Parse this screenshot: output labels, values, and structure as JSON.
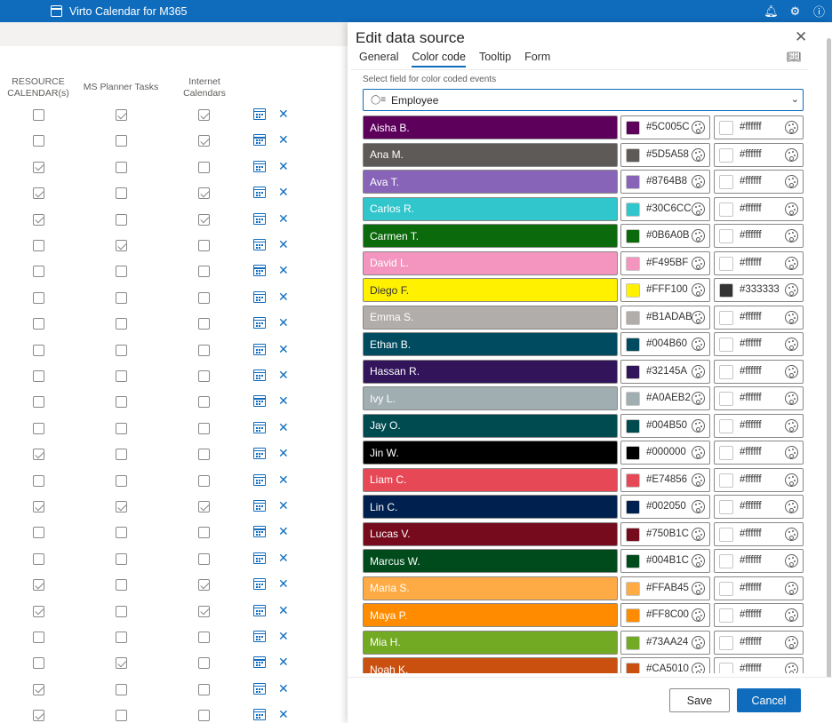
{
  "app": {
    "title": "Virto Calendar for M365",
    "icons": [
      "bell-icon",
      "gear-icon",
      "help-icon"
    ]
  },
  "table": {
    "headers": [
      {
        "line1": "RESOURCE",
        "line2": "CALENDAR(s)"
      },
      {
        "line1": "MS Planner Tasks",
        "line2": ""
      },
      {
        "line1": "Internet",
        "line2": "Calendars"
      }
    ],
    "rows": [
      [
        false,
        true,
        true
      ],
      [
        false,
        false,
        true
      ],
      [
        true,
        false,
        false
      ],
      [
        true,
        false,
        true
      ],
      [
        true,
        false,
        true
      ],
      [
        false,
        true,
        false
      ],
      [
        false,
        false,
        false
      ],
      [
        false,
        false,
        false
      ],
      [
        false,
        false,
        false
      ],
      [
        false,
        false,
        false
      ],
      [
        false,
        false,
        false
      ],
      [
        false,
        false,
        false
      ],
      [
        false,
        false,
        false
      ],
      [
        true,
        false,
        false
      ],
      [
        false,
        false,
        false
      ],
      [
        true,
        true,
        true
      ],
      [
        false,
        false,
        false
      ],
      [
        false,
        false,
        false
      ],
      [
        true,
        false,
        true
      ],
      [
        true,
        false,
        true
      ],
      [
        false,
        false,
        false
      ],
      [
        false,
        true,
        false
      ],
      [
        true,
        false,
        false
      ],
      [
        true,
        false,
        false
      ],
      [
        true,
        false,
        false
      ]
    ]
  },
  "panel": {
    "title": "Edit data source",
    "tabs": [
      "General",
      "Color code",
      "Tooltip",
      "Form"
    ],
    "active_tab": "Color code",
    "field_label": "Select field for color coded events",
    "field_value": "Employee",
    "save_label": "Save",
    "cancel_label": "Cancel"
  },
  "color_codes": [
    {
      "name": "Aisha B.",
      "bg": "#5C005C",
      "fg": "#ffffff"
    },
    {
      "name": "Ana M.",
      "bg": "#5D5A58",
      "fg": "#ffffff"
    },
    {
      "name": "Ava T.",
      "bg": "#8764B8",
      "fg": "#ffffff"
    },
    {
      "name": "Carlos R.",
      "bg": "#30C6CC",
      "fg": "#ffffff"
    },
    {
      "name": "Carmen T.",
      "bg": "#0B6A0B",
      "fg": "#ffffff"
    },
    {
      "name": "David L.",
      "bg": "#F495BF",
      "fg": "#ffffff"
    },
    {
      "name": "Diego F.",
      "bg": "#FFF100",
      "fg": "#333333"
    },
    {
      "name": "Emma S.",
      "bg": "#B1ADAB",
      "fg": "#ffffff"
    },
    {
      "name": "Ethan B.",
      "bg": "#004B60",
      "fg": "#ffffff"
    },
    {
      "name": "Hassan R.",
      "bg": "#32145A",
      "fg": "#ffffff"
    },
    {
      "name": "Ivy L.",
      "bg": "#A0AEB2",
      "fg": "#ffffff"
    },
    {
      "name": "Jay O.",
      "bg": "#004B50",
      "fg": "#ffffff"
    },
    {
      "name": "Jin W.",
      "bg": "#000000",
      "fg": "#ffffff"
    },
    {
      "name": "Liam C.",
      "bg": "#E74856",
      "fg": "#ffffff"
    },
    {
      "name": "Lin C.",
      "bg": "#002050",
      "fg": "#ffffff"
    },
    {
      "name": "Lucas V.",
      "bg": "#750B1C",
      "fg": "#ffffff"
    },
    {
      "name": "Marcus W.",
      "bg": "#004B1C",
      "fg": "#ffffff"
    },
    {
      "name": "Maria S.",
      "bg": "#FFAB45",
      "fg": "#ffffff"
    },
    {
      "name": "Maya P.",
      "bg": "#FF8C00",
      "fg": "#ffffff"
    },
    {
      "name": "Mia H.",
      "bg": "#73AA24",
      "fg": "#ffffff"
    },
    {
      "name": "Noah K.",
      "bg": "#CA5010",
      "fg": "#ffffff"
    }
  ]
}
